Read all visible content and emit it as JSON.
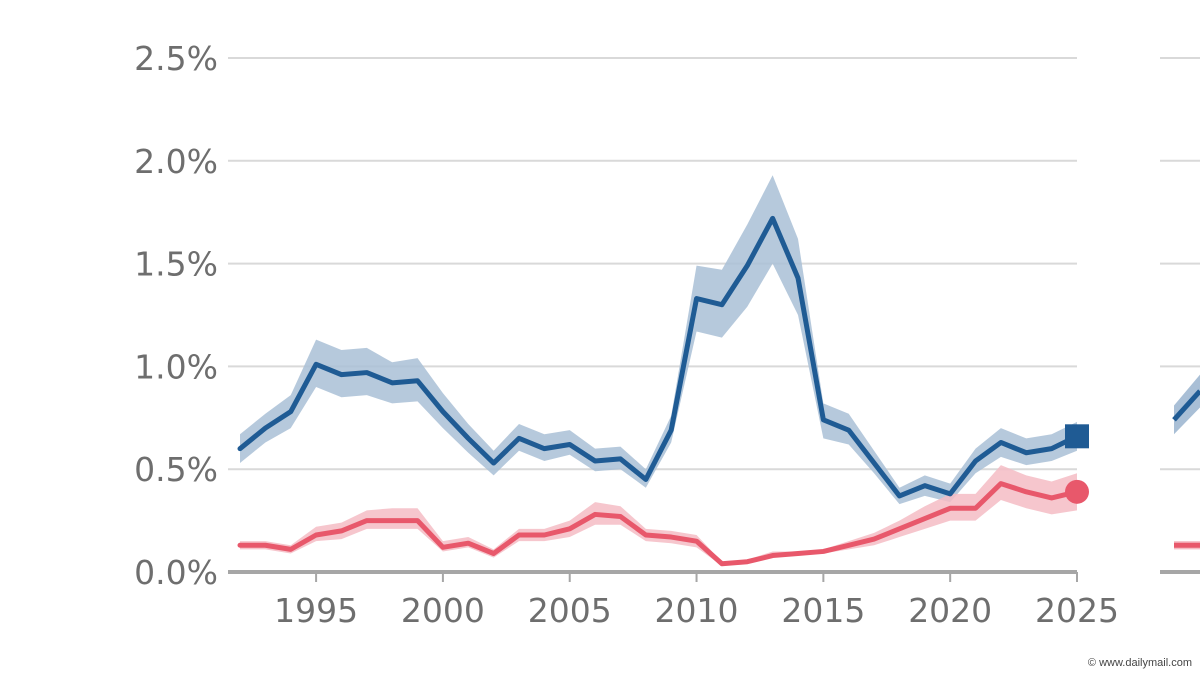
{
  "chart_data": {
    "type": "line",
    "title": "",
    "xlabel": "",
    "ylabel": "",
    "x": [
      1992,
      1993,
      1994,
      1995,
      1996,
      1997,
      1998,
      1999,
      2000,
      2001,
      2002,
      2003,
      2004,
      2005,
      2006,
      2007,
      2008,
      2009,
      2010,
      2011,
      2012,
      2013,
      2014,
      2015,
      2016,
      2017,
      2018,
      2019,
      2020,
      2021,
      2022,
      2023,
      2024,
      2025
    ],
    "xlim": [
      1992,
      2025
    ],
    "ylim": [
      0,
      2.5
    ],
    "y_ticks": [
      0,
      0.5,
      1.0,
      1.5,
      2.0,
      2.5
    ],
    "y_tick_labels": [
      "0.0%",
      "0.5%",
      "1.0%",
      "1.5%",
      "2.0%",
      "2.5%"
    ],
    "x_ticks": [
      1995,
      2000,
      2005,
      2010,
      2015,
      2020,
      2025
    ],
    "x_tick_labels": [
      "1995",
      "2000",
      "2005",
      "2010",
      "2015",
      "2020",
      "2025"
    ],
    "grid": true,
    "series": [
      {
        "color": "#1f5b94",
        "band_color": "#a9bfd6",
        "end_marker": "square",
        "values": [
          0.6,
          0.7,
          0.78,
          1.01,
          0.96,
          0.97,
          0.92,
          0.93,
          0.78,
          0.65,
          0.53,
          0.65,
          0.6,
          0.62,
          0.54,
          0.55,
          0.45,
          0.69,
          1.33,
          1.3,
          1.49,
          1.72,
          1.43,
          0.74,
          0.69,
          0.53,
          0.37,
          0.42,
          0.38,
          0.54,
          0.63,
          0.58,
          0.6,
          0.66
        ],
        "lower": [
          0.53,
          0.63,
          0.7,
          0.9,
          0.85,
          0.86,
          0.82,
          0.83,
          0.7,
          0.58,
          0.47,
          0.59,
          0.54,
          0.57,
          0.49,
          0.5,
          0.41,
          0.63,
          1.17,
          1.14,
          1.29,
          1.5,
          1.25,
          0.65,
          0.62,
          0.48,
          0.33,
          0.37,
          0.34,
          0.48,
          0.56,
          0.52,
          0.54,
          0.59
        ],
        "upper": [
          0.67,
          0.77,
          0.86,
          1.13,
          1.08,
          1.09,
          1.02,
          1.04,
          0.87,
          0.72,
          0.59,
          0.72,
          0.67,
          0.69,
          0.6,
          0.61,
          0.5,
          0.76,
          1.49,
          1.47,
          1.69,
          1.93,
          1.62,
          0.82,
          0.77,
          0.59,
          0.41,
          0.47,
          0.43,
          0.6,
          0.7,
          0.65,
          0.67,
          0.73
        ]
      },
      {
        "color": "#e8586b",
        "band_color": "#f5bcc4",
        "end_marker": "circle",
        "values": [
          0.13,
          0.13,
          0.11,
          0.18,
          0.2,
          0.25,
          0.25,
          0.25,
          0.12,
          0.14,
          0.09,
          0.18,
          0.18,
          0.21,
          0.28,
          0.27,
          0.18,
          0.17,
          0.15,
          0.04,
          0.05,
          0.08,
          0.09,
          0.1,
          0.13,
          0.16,
          0.21,
          0.26,
          0.31,
          0.31,
          0.43,
          0.39,
          0.36,
          0.39
        ],
        "lower": [
          0.11,
          0.11,
          0.09,
          0.15,
          0.16,
          0.21,
          0.21,
          0.21,
          0.1,
          0.12,
          0.07,
          0.15,
          0.15,
          0.17,
          0.23,
          0.23,
          0.15,
          0.14,
          0.12,
          0.03,
          0.04,
          0.07,
          0.08,
          0.09,
          0.11,
          0.13,
          0.17,
          0.21,
          0.25,
          0.25,
          0.35,
          0.31,
          0.28,
          0.3
        ],
        "upper": [
          0.15,
          0.15,
          0.13,
          0.22,
          0.24,
          0.3,
          0.31,
          0.31,
          0.15,
          0.17,
          0.11,
          0.21,
          0.21,
          0.25,
          0.34,
          0.32,
          0.21,
          0.2,
          0.18,
          0.05,
          0.06,
          0.1,
          0.1,
          0.11,
          0.15,
          0.19,
          0.25,
          0.32,
          0.38,
          0.38,
          0.52,
          0.47,
          0.44,
          0.48
        ]
      }
    ]
  },
  "second_panel": {
    "blue_start": 0.74,
    "red_start": 0.13
  },
  "credit": "© www.dailymail.com"
}
